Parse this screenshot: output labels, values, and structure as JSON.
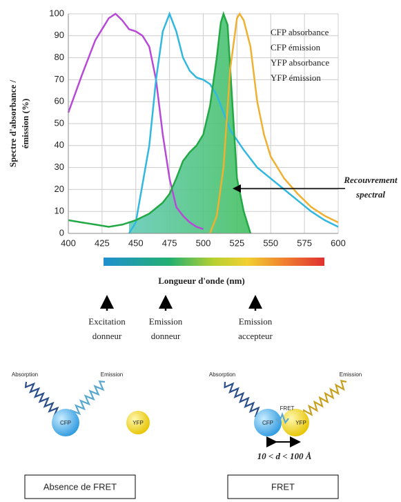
{
  "chart_data": {
    "type": "line",
    "ylabel_lines": [
      "Spectre d'absorbance /",
      "émission (%)"
    ],
    "xlabel": "Longueur d'onde (nm)",
    "xlim": [
      400,
      600
    ],
    "xticks": [
      400,
      425,
      450,
      475,
      500,
      525,
      550,
      575,
      600
    ],
    "ylim": [
      0,
      100
    ],
    "yticks": [
      0,
      10,
      20,
      30,
      40,
      50,
      60,
      70,
      80,
      90,
      100
    ],
    "grid": true,
    "series": [
      {
        "name": "CFP absorbance",
        "color": "#b848d8",
        "x": [
          400,
          410,
          420,
          430,
          435,
          440,
          445,
          450,
          455,
          460,
          465,
          470,
          475,
          480,
          485,
          490,
          495,
          500
        ],
        "values": [
          55,
          72,
          88,
          98,
          100,
          97,
          93,
          92,
          90,
          85,
          70,
          45,
          25,
          12,
          8,
          5,
          3,
          2
        ]
      },
      {
        "name": "CFP émission",
        "color": "#30b8e0",
        "x": [
          445,
          450,
          460,
          465,
          470,
          475,
          480,
          485,
          490,
          495,
          500,
          505,
          510,
          515,
          520,
          530,
          540,
          550,
          560,
          570,
          580,
          590,
          600
        ],
        "values": [
          0,
          5,
          40,
          70,
          92,
          100,
          92,
          80,
          74,
          71,
          70,
          68,
          63,
          55,
          47,
          38,
          30,
          25,
          20,
          15,
          10,
          6,
          3
        ]
      },
      {
        "name": "YFP absorbance",
        "color": "#22a844",
        "x": [
          400,
          410,
          420,
          430,
          440,
          450,
          460,
          470,
          475,
          480,
          485,
          490,
          495,
          500,
          505,
          510,
          513,
          515,
          518,
          520,
          523,
          525,
          530,
          535
        ],
        "values": [
          6,
          5,
          4,
          3,
          4,
          6,
          9,
          14,
          18,
          25,
          33,
          37,
          40,
          45,
          58,
          80,
          96,
          100,
          95,
          75,
          45,
          25,
          10,
          0
        ]
      },
      {
        "name": "YFP émission",
        "color": "#f0b030",
        "x": [
          505,
          510,
          515,
          520,
          525,
          527,
          530,
          535,
          540,
          545,
          550,
          560,
          570,
          580,
          590,
          600
        ],
        "values": [
          0,
          8,
          30,
          75,
          98,
          100,
          97,
          85,
          60,
          45,
          35,
          25,
          18,
          12,
          8,
          5
        ]
      }
    ],
    "annotation_lines": [
      "Recouvrement",
      "spectral"
    ],
    "markers": [
      {
        "label_lines": [
          "Excitation",
          "donneur"
        ]
      },
      {
        "label_lines": [
          "Emission",
          "donneur"
        ]
      },
      {
        "label_lines": [
          "Emission",
          "accepteur"
        ]
      }
    ]
  },
  "diagram": {
    "left": {
      "absorption": "Absorption",
      "emission": "Emission",
      "donor": "CFP",
      "acceptor": "YFP",
      "caption": "Absence de FRET"
    },
    "right": {
      "absorption": "Absorption",
      "emission": "Emission",
      "donor": "CFP",
      "acceptor": "YFP",
      "transfer": "FRET",
      "distance": "10 < d < 100 Å",
      "caption": "FRET"
    }
  }
}
